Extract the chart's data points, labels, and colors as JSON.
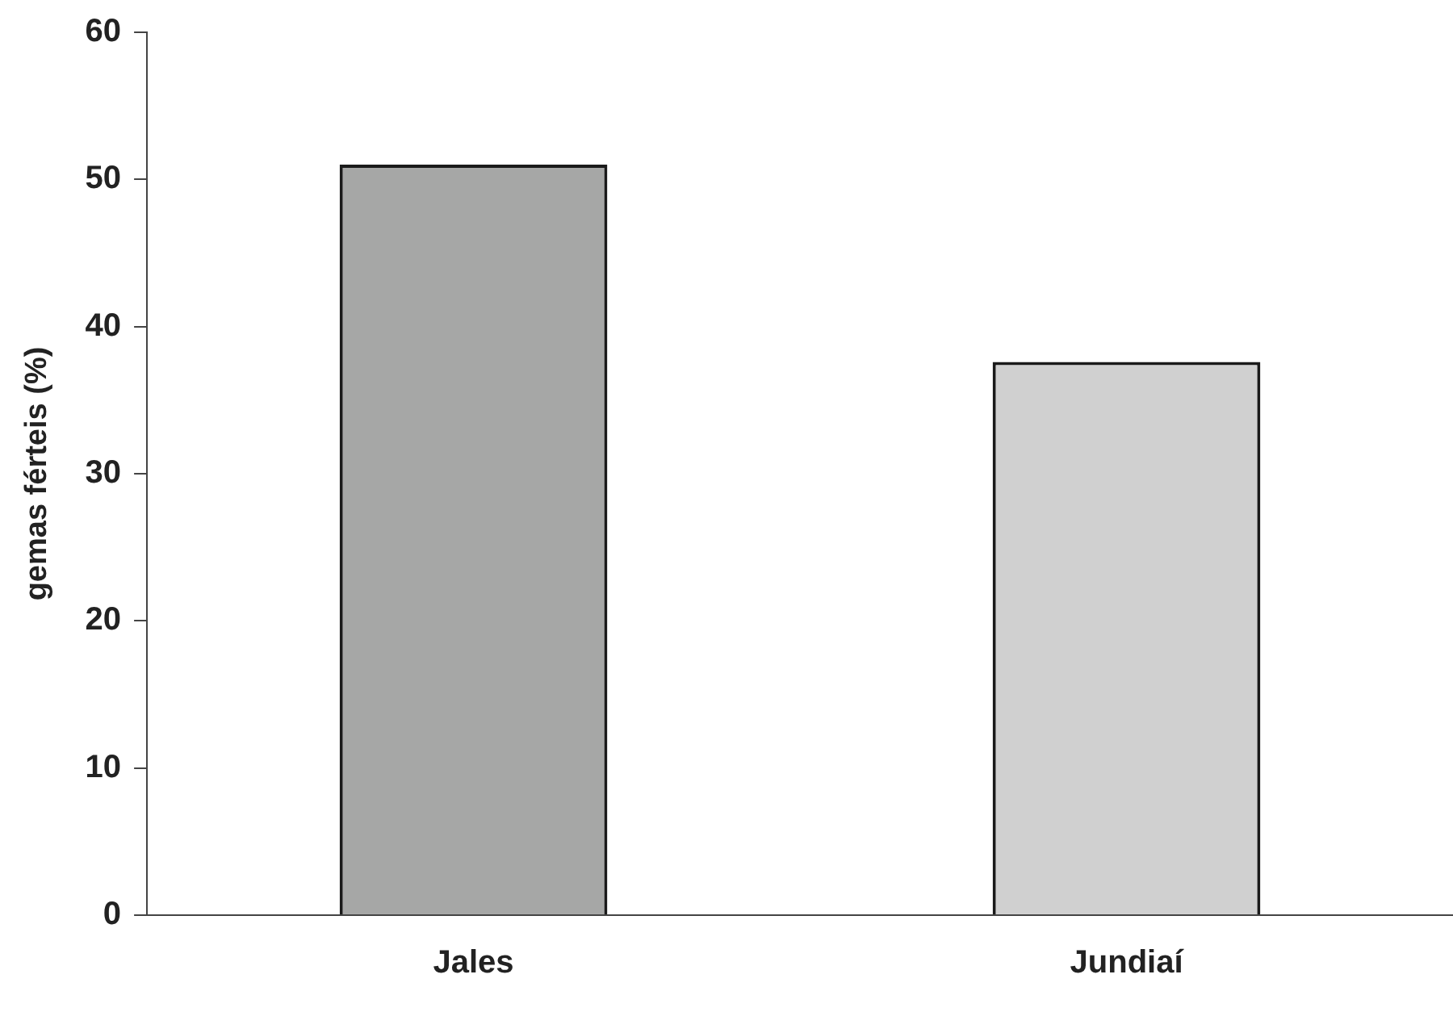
{
  "chart_data": {
    "type": "bar",
    "ylabel": "gemas férteis (%)",
    "categories": [
      "Jales",
      "Jundiaí"
    ],
    "values": [
      51,
      37.6
    ],
    "colors": [
      "#a6a7a6",
      "#d0d0d0"
    ],
    "ylim": [
      0,
      60
    ],
    "yticks": [
      0,
      10,
      20,
      30,
      40,
      50,
      60
    ],
    "grid": false,
    "legend": false
  }
}
